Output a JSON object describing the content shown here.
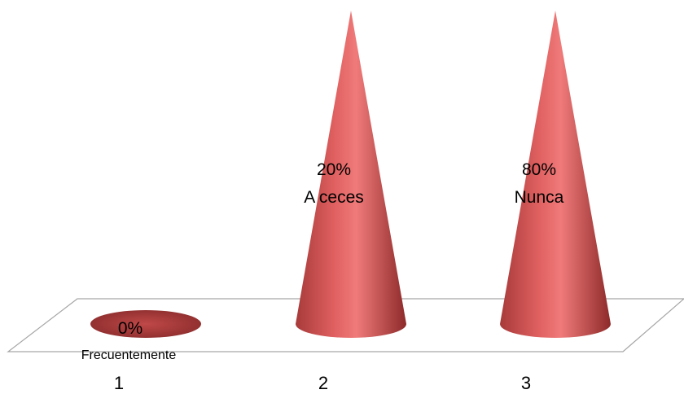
{
  "chart_data": {
    "type": "bar",
    "shape": "cone",
    "categories": [
      "1",
      "2",
      "3"
    ],
    "values": [
      0,
      20,
      80
    ],
    "data_labels": [
      {
        "value": "0%",
        "category": "Frecuentemente"
      },
      {
        "value": "20%",
        "category": "A ceces"
      },
      {
        "value": "80%",
        "category": "Nunca"
      }
    ],
    "colors": {
      "cone": "#d9534f",
      "cone_dark": "#a52a2a",
      "cone_light": "#f08080",
      "floor_stroke": "#999999"
    },
    "grid": false,
    "legend": "none"
  }
}
